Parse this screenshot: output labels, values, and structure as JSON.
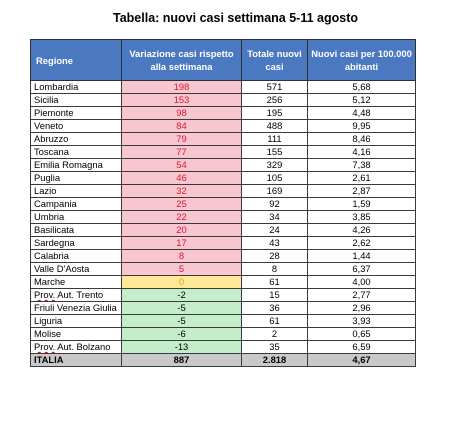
{
  "title": "Tabella: nuovi casi settimana 5-11 agosto",
  "headers": {
    "region": "Regione",
    "variation": "Variazione casi rispetto alla settimana",
    "total": "Totale nuovi casi",
    "per100k": "Nuovi casi per 100.000 abitanti"
  },
  "rows": [
    {
      "region": "Lombardia",
      "variation": "198",
      "total": "571",
      "per100k": "5,68",
      "status": "pos"
    },
    {
      "region": "Sicilia",
      "variation": "153",
      "total": "256",
      "per100k": "5,12",
      "status": "pos"
    },
    {
      "region": "Piemonte",
      "variation": "98",
      "total": "195",
      "per100k": "4,48",
      "status": "pos"
    },
    {
      "region": "Veneto",
      "variation": "84",
      "total": "488",
      "per100k": "9,95",
      "status": "pos"
    },
    {
      "region": "Abruzzo",
      "variation": "79",
      "total": "111",
      "per100k": "8,46",
      "status": "pos"
    },
    {
      "region": "Toscana",
      "variation": "77",
      "total": "155",
      "per100k": "4,16",
      "status": "pos"
    },
    {
      "region": "Emilia Romagna",
      "variation": "54",
      "total": "329",
      "per100k": "7,38",
      "status": "pos"
    },
    {
      "region": "Puglia",
      "variation": "46",
      "total": "105",
      "per100k": "2,61",
      "status": "pos"
    },
    {
      "region": "Lazio",
      "variation": "32",
      "total": "169",
      "per100k": "2,87",
      "status": "pos"
    },
    {
      "region": "Campania",
      "variation": "25",
      "total": "92",
      "per100k": "1,59",
      "status": "pos"
    },
    {
      "region": "Umbria",
      "variation": "22",
      "total": "34",
      "per100k": "3,85",
      "status": "pos"
    },
    {
      "region": "Basilicata",
      "variation": "20",
      "total": "24",
      "per100k": "4,26",
      "status": "pos"
    },
    {
      "region": "Sardegna",
      "variation": "17",
      "total": "43",
      "per100k": "2,62",
      "status": "pos"
    },
    {
      "region": "Calabria",
      "variation": "8",
      "total": "28",
      "per100k": "1,44",
      "status": "pos"
    },
    {
      "region": "Valle D'Aosta",
      "variation": "5",
      "total": "8",
      "per100k": "6,37",
      "status": "pos"
    },
    {
      "region": "Marche",
      "variation": "0",
      "total": "61",
      "per100k": "4,00",
      "status": "zero"
    },
    {
      "region": "Prov. Aut. Trento",
      "variation": "-2",
      "total": "15",
      "per100k": "2,77",
      "status": "neg"
    },
    {
      "region": "Friuli Venezia Giulia",
      "variation": "-5",
      "total": "36",
      "per100k": "2,96",
      "status": "neg"
    },
    {
      "region": "Liguria",
      "variation": "-5",
      "total": "61",
      "per100k": "3,93",
      "status": "neg"
    },
    {
      "region": "Molise",
      "variation": "-6",
      "total": "2",
      "per100k": "0,65",
      "status": "neg"
    },
    {
      "region": "Prov. Aut. Bolzano",
      "variation": "-13",
      "total": "35",
      "per100k": "6,59",
      "status": "neg"
    }
  ],
  "total_row": {
    "region": "ITALIA",
    "variation": "887",
    "total": "2.818",
    "per100k": "4,67"
  },
  "colors": {
    "header_bg": "#4a78c1",
    "positive_bg": "#f8c6d1",
    "positive_text": "#d81b2f",
    "zero_bg": "#ffe999",
    "negative_bg": "#c4eec9",
    "total_bg": "#c9c9c9"
  }
}
